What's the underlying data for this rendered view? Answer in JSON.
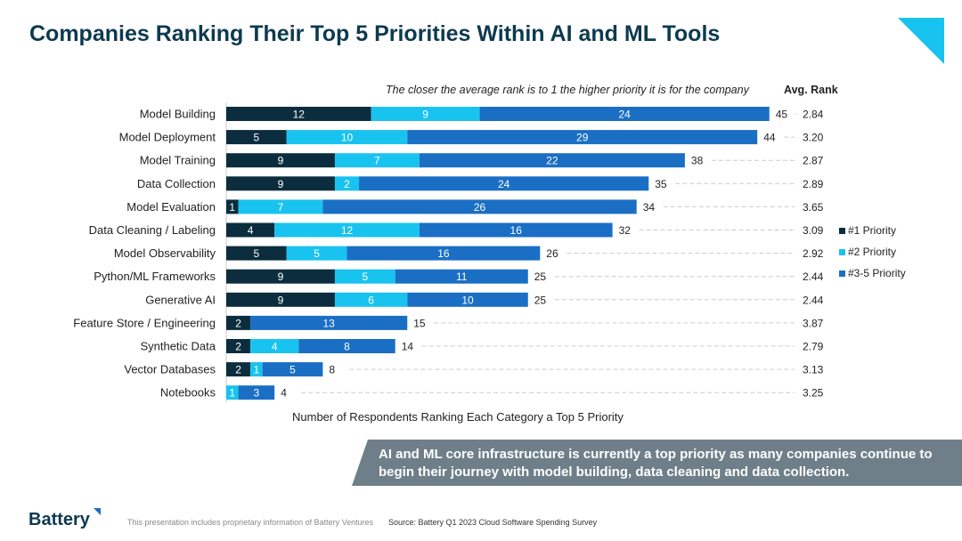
{
  "title": "Companies Ranking Their Top 5 Priorities Within AI and ML Tools",
  "subtitle": "The closer the average rank is to 1 the higher priority it is for the company",
  "avg_rank_header": "Avg. Rank",
  "banner": "AI and ML core infrastructure is currently a top priority as many companies continue to begin their journey with model building, data cleaning and data collection.",
  "footer": {
    "logo": "Battery",
    "disclaimer": "This presentation includes proprietary information of Battery Ventures",
    "source": "Source: Battery Q1 2023 Cloud Software Spending Survey"
  },
  "colors": {
    "p1": "#0b2d3e",
    "p2": "#19c3ef",
    "p35": "#1a6fc4"
  },
  "chart_data": {
    "type": "bar",
    "orientation": "horizontal-stacked",
    "xlabel": "Number of Respondents Ranking Each Category a Top 5 Priority",
    "categories": [
      "Model Building",
      "Model Deployment",
      "Model Training",
      "Data Collection",
      "Model Evaluation",
      "Data Cleaning / Labeling",
      "Model Observability",
      "Python/ML Frameworks",
      "Generative AI",
      "Feature Store / Engineering",
      "Synthetic Data",
      "Vector Databases",
      "Notebooks"
    ],
    "series": [
      {
        "name": "#1 Priority",
        "values": [
          12,
          5,
          9,
          9,
          1,
          4,
          5,
          9,
          9,
          2,
          2,
          2,
          0
        ]
      },
      {
        "name": "#2 Priority",
        "values": [
          9,
          10,
          7,
          2,
          7,
          12,
          5,
          5,
          6,
          0,
          4,
          1,
          1
        ]
      },
      {
        "name": "#3-5 Priority",
        "values": [
          24,
          29,
          22,
          24,
          26,
          16,
          16,
          11,
          10,
          13,
          8,
          5,
          3
        ]
      }
    ],
    "totals": [
      45,
      44,
      38,
      35,
      34,
      32,
      26,
      25,
      25,
      15,
      14,
      8,
      4
    ],
    "avg_rank": [
      "2.84",
      "3.20",
      "2.87",
      "2.89",
      "3.65",
      "3.09",
      "2.92",
      "2.44",
      "2.44",
      "3.87",
      "2.79",
      "3.13",
      "3.25"
    ],
    "legend": "right"
  }
}
